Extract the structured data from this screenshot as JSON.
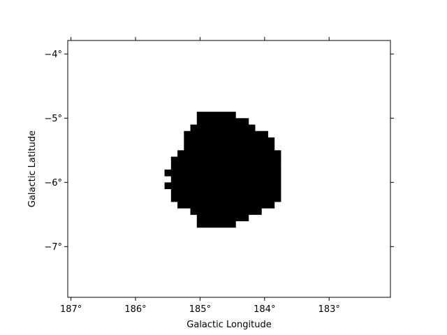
{
  "chart_data": {
    "type": "heatmap",
    "title": "",
    "xlabel": "Galactic Longitude",
    "ylabel": "Galactic Latitude",
    "xlim": [
      187.05,
      182.05
    ],
    "ylim": [
      -7.79,
      -3.79
    ],
    "x_ticks": [
      {
        "value": 187,
        "label": "187°"
      },
      {
        "value": 186,
        "label": "186°"
      },
      {
        "value": 185,
        "label": "185°"
      },
      {
        "value": 184,
        "label": "184°"
      },
      {
        "value": 183,
        "label": "183°"
      }
    ],
    "y_ticks": [
      {
        "value": -4,
        "label": "−4°"
      },
      {
        "value": -5,
        "label": "−5°"
      },
      {
        "value": -6,
        "label": "−6°"
      },
      {
        "value": -7,
        "label": "−7°"
      }
    ],
    "cell_size_deg": 0.1,
    "mask_rows": [
      {
        "lat": [
          -5.0,
          -4.9
        ],
        "lon": [
          184.45,
          185.05
        ]
      },
      {
        "lat": [
          -5.1,
          -5.0
        ],
        "lon": [
          184.25,
          185.05
        ]
      },
      {
        "lat": [
          -5.2,
          -5.1
        ],
        "lon": [
          184.15,
          185.15
        ]
      },
      {
        "lat": [
          -5.3,
          -5.2
        ],
        "lon": [
          183.95,
          185.25
        ]
      },
      {
        "lat": [
          -5.5,
          -5.3
        ],
        "lon": [
          183.85,
          185.25
        ]
      },
      {
        "lat": [
          -5.6,
          -5.5
        ],
        "lon": [
          183.75,
          185.35
        ]
      },
      {
        "lat": [
          -5.8,
          -5.6
        ],
        "lon": [
          183.75,
          185.45
        ]
      },
      {
        "lat": [
          -5.9,
          -5.8
        ],
        "lon": [
          183.75,
          185.55
        ]
      },
      {
        "lat": [
          -6.0,
          -5.9
        ],
        "lon": [
          183.75,
          185.45
        ]
      },
      {
        "lat": [
          -6.1,
          -6.0
        ],
        "lon": [
          183.75,
          185.55
        ]
      },
      {
        "lat": [
          -6.3,
          -6.1
        ],
        "lon": [
          183.75,
          185.45
        ]
      },
      {
        "lat": [
          -6.4,
          -6.3
        ],
        "lon": [
          183.85,
          185.35
        ]
      },
      {
        "lat": [
          -6.5,
          -6.4
        ],
        "lon": [
          184.05,
          185.15
        ]
      },
      {
        "lat": [
          -6.6,
          -6.5
        ],
        "lon": [
          184.25,
          185.05
        ]
      },
      {
        "lat": [
          -6.7,
          -6.6
        ],
        "lon": [
          184.45,
          185.05
        ]
      }
    ],
    "fill_color": "#000000",
    "background_color": "#ffffff",
    "grid": false,
    "legend": "none"
  }
}
